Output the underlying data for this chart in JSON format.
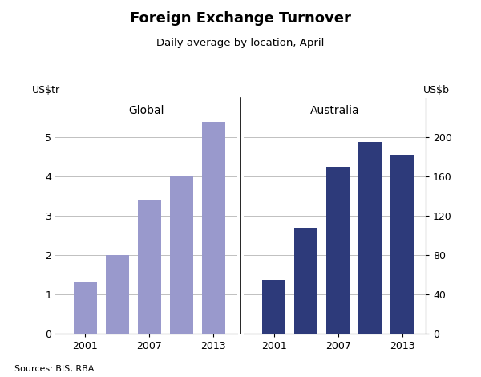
{
  "title": "Foreign Exchange Turnover",
  "subtitle": "Daily average by location, April",
  "source": "Sources: BIS; RBA",
  "global_label": "Global",
  "australia_label": "Australia",
  "left_ylabel": "US$tr",
  "right_ylabel": "US$b",
  "x_years_global": [
    2001,
    2004,
    2007,
    2010,
    2013
  ],
  "x_years_australia": [
    2001,
    2004,
    2007,
    2010,
    2013
  ],
  "global_values": [
    1.3,
    2.0,
    3.4,
    4.0,
    5.4
  ],
  "australia_values": [
    55,
    108,
    170,
    195,
    182
  ],
  "global_color": "#9999cc",
  "australia_color": "#2d3a7a",
  "ylim_left": [
    0,
    6
  ],
  "ylim_right": [
    0,
    240
  ],
  "left_yticks": [
    0,
    1,
    2,
    3,
    4,
    5
  ],
  "right_yticks": [
    0,
    40,
    80,
    120,
    160,
    200
  ],
  "x_ticks_labels": [
    2001,
    2007,
    2013
  ],
  "fig_width": 6.0,
  "fig_height": 4.7,
  "title_fontsize": 13,
  "subtitle_fontsize": 9.5,
  "label_fontsize": 10,
  "tick_fontsize": 9
}
